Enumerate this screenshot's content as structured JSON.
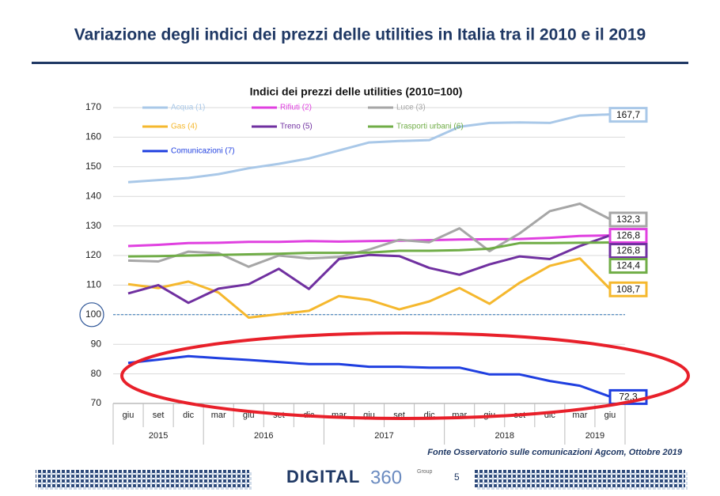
{
  "slide_title": "Variazione degli indici dei prezzi delle utilities in Italia tra il 2010 e il 2019",
  "chart_data": {
    "type": "line",
    "title": "Indici dei prezzi delle utilities (2010=100)",
    "categories": [
      "giu",
      "set",
      "dic",
      "mar",
      "giu",
      "set",
      "dic",
      "mar",
      "giu",
      "set",
      "dic",
      "mar",
      "giu",
      "set",
      "dic",
      "mar",
      "giu"
    ],
    "year_groups": [
      {
        "label": "2015",
        "span": 3
      },
      {
        "label": "2016",
        "span": 4
      },
      {
        "label": "2017",
        "span": 4
      },
      {
        "label": "2018",
        "span": 4
      },
      {
        "label": "2019",
        "span": 2
      }
    ],
    "ylim": [
      70,
      170
    ],
    "yticks": [
      70,
      80,
      90,
      100,
      110,
      120,
      130,
      140,
      150,
      160,
      170
    ],
    "grid": true,
    "reference_line": 100,
    "series": [
      {
        "name": "Acqua (1)",
        "color": "#a9c8e8",
        "values": [
          144.8,
          145.5,
          146.2,
          147.5,
          149.5,
          151,
          152.8,
          155.5,
          158.2,
          158.7,
          159,
          163.5,
          164.8,
          165,
          164.8,
          167.3,
          167.7
        ],
        "value_labels": [
          null,
          null,
          null,
          null,
          null,
          null,
          null,
          null,
          null,
          null,
          null,
          null,
          null,
          null,
          null,
          null,
          "167,7"
        ]
      },
      {
        "name": "Rifiuti (2)",
        "color": "#e040e0",
        "values": [
          123.2,
          123.6,
          124.2,
          124.3,
          124.6,
          124.6,
          124.9,
          124.7,
          124.9,
          125,
          125.2,
          125.4,
          125.5,
          125.6,
          126,
          126.6,
          126.8
        ],
        "value_labels": [
          null,
          null,
          null,
          null,
          null,
          null,
          null,
          null,
          null,
          null,
          null,
          null,
          null,
          null,
          null,
          null,
          "126,8"
        ]
      },
      {
        "name": "Luce (3)",
        "color": "#a6a6a6",
        "values": [
          118.3,
          118,
          121.3,
          120.8,
          116.2,
          120,
          119,
          119.5,
          122,
          125.3,
          124.5,
          129.2,
          121.5,
          127.5,
          135,
          137.5,
          132.3
        ],
        "value_labels": [
          null,
          null,
          null,
          null,
          null,
          null,
          null,
          null,
          null,
          null,
          null,
          null,
          null,
          null,
          null,
          null,
          "132,3"
        ]
      },
      {
        "name": "Gas (4)",
        "color": "#f5b82e",
        "values": [
          110.3,
          109,
          111.2,
          107.5,
          99,
          100.2,
          101.3,
          106.3,
          105,
          101.8,
          104.5,
          109,
          103.7,
          110.8,
          116.5,
          119,
          108.7
        ],
        "value_labels": [
          null,
          null,
          null,
          null,
          null,
          null,
          null,
          null,
          null,
          null,
          null,
          null,
          null,
          null,
          null,
          null,
          "108,7"
        ]
      },
      {
        "name": "Treno (5)",
        "color": "#7030a0",
        "values": [
          107.2,
          110,
          104,
          108.8,
          110.3,
          115.5,
          108.7,
          118.8,
          120.2,
          119.8,
          115.8,
          113.5,
          117,
          119.7,
          118.8,
          123.2,
          126.8
        ],
        "value_labels": [
          null,
          null,
          null,
          null,
          null,
          null,
          null,
          null,
          null,
          null,
          null,
          null,
          null,
          null,
          null,
          null,
          "126,8"
        ]
      },
      {
        "name": "Trasporti urbani (6)",
        "color": "#70ad47",
        "values": [
          119.7,
          119.8,
          120,
          120.2,
          120.4,
          120.6,
          120.9,
          120.9,
          121,
          121.6,
          121.6,
          121.8,
          122.3,
          124.2,
          124.2,
          124.3,
          124.4
        ],
        "value_labels": [
          null,
          null,
          null,
          null,
          null,
          null,
          null,
          null,
          null,
          null,
          null,
          null,
          null,
          null,
          null,
          null,
          "124,4"
        ]
      },
      {
        "name": "Comunicazioni (7)",
        "color": "#1f3fe0",
        "values": [
          83.7,
          84.8,
          86,
          85.3,
          84.7,
          84,
          83.3,
          83.3,
          82.4,
          82.4,
          82.1,
          82.1,
          79.8,
          79.8,
          77.6,
          76,
          72.3
        ],
        "value_labels": [
          null,
          null,
          null,
          null,
          null,
          null,
          null,
          null,
          null,
          null,
          null,
          null,
          null,
          null,
          null,
          null,
          "72,3"
        ]
      }
    ]
  },
  "source": "Fonte Osservatorio sulle comunicazioni Agcom, Ottobre 2019",
  "footer": {
    "brand": "DIGITAL",
    "brand_number": "360",
    "brand_suffix": "Group",
    "page": "5"
  }
}
